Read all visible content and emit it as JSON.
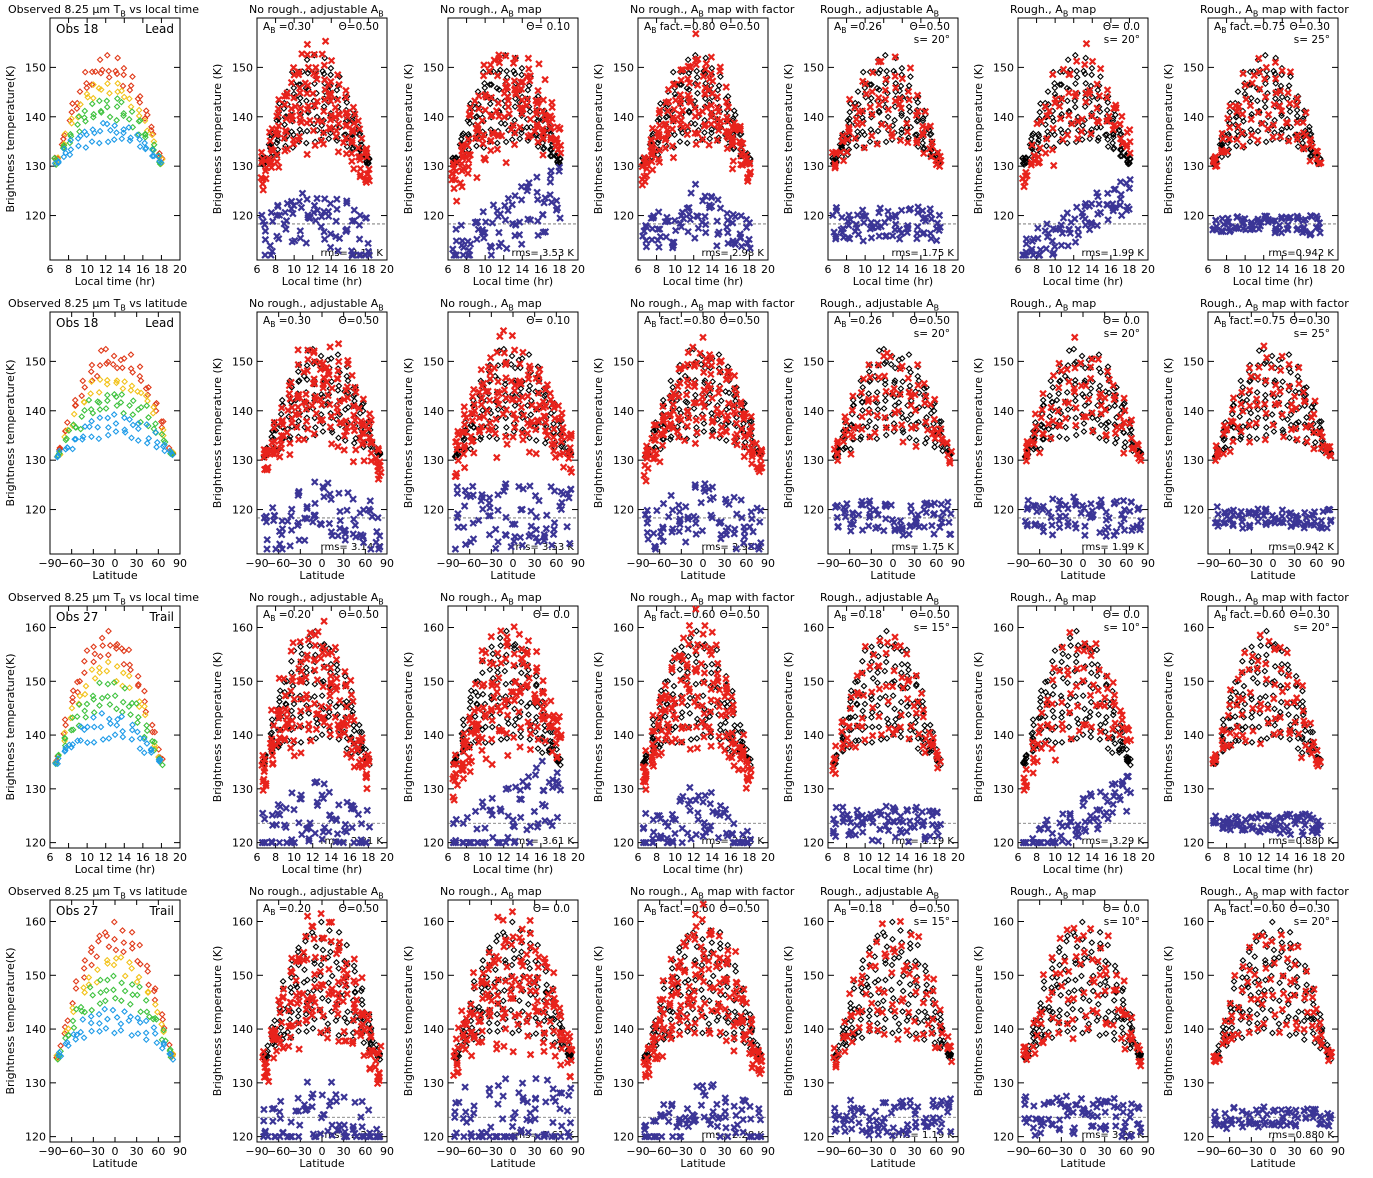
{
  "colors": {
    "observed_cool": "#1e9be8",
    "observed_mid": "#3fc23f",
    "observed_warm": "#f2c21b",
    "observed_hot": "#e03a1a",
    "model": "#e8231c",
    "observed_black": "#000000",
    "residual": "#3b3596",
    "reference_line": "#666666"
  },
  "marker_types": {
    "observed": "diamond-outline",
    "model": "cross-filled",
    "residual": "cross-filled"
  },
  "common": {
    "y_label_obs": "Brightness temperature(K)",
    "y_label_model": "Brightness temperature (K)",
    "x_label_time": "Local time (hr)",
    "x_label_lat": "Latitude",
    "x_ticks_time": [
      "6",
      "8",
      "10",
      "12",
      "14",
      "16",
      "18",
      "20"
    ],
    "x_ticks_lat": [
      "−90",
      "−60",
      "−30",
      "0",
      "30",
      "60",
      "90"
    ],
    "xlim_time": [
      6,
      20
    ],
    "xlim_lat": [
      -90,
      90
    ]
  },
  "chart_data": [
    {
      "row": 1,
      "type": "scatter",
      "xaxis": "time",
      "ylim": [
        111,
        160
      ],
      "yticks": [
        120,
        130,
        140,
        150
      ],
      "residual_ref": 118.3,
      "peak": 151,
      "obs": {
        "title": "Observed 8.25 μm T",
        "title_sub": "B",
        "title_tail": " vs local time",
        "label": "Obs 18",
        "track": "Lead"
      },
      "panels": [
        {
          "t1": "No rough., adjustable A",
          "t1_sub": "B",
          "t1_tail": "",
          "a1": "A",
          "a1_sub": "B",
          "a1_tail": " =0.30",
          "a2": "Θ=0.50",
          "a3": "",
          "rms": "rms= 3.14 K"
        },
        {
          "t1": "No rough., A",
          "t1_sub": "B",
          "t1_tail": " map",
          "a1": "",
          "a1_sub": "",
          "a1_tail": "",
          "a2": "Θ= 0.10",
          "a3": "",
          "rms": "rms= 3.53 K"
        },
        {
          "t1": "No rough., A",
          "t1_sub": "B",
          "t1_tail": " map with factor",
          "a1": "A",
          "a1_sub": "B",
          "a1_tail": " fact.=0.80",
          "a2": "Θ=0.50",
          "a3": "",
          "rms": "rms= 2.98 K"
        },
        {
          "t1": "Rough., adjustable A",
          "t1_sub": "B",
          "t1_tail": "",
          "a1": "A",
          "a1_sub": "B",
          "a1_tail": " =0.26",
          "a2": "Θ=0.50",
          "a3": "s= 20°",
          "rms": "rms= 1.75 K"
        },
        {
          "t1": "Rough., A",
          "t1_sub": "B",
          "t1_tail": " map",
          "a1": "",
          "a1_sub": "",
          "a1_tail": "",
          "a2": "Θ= 0.0",
          "a3": "s= 20°",
          "rms": "rms= 1.99 K"
        },
        {
          "t1": "Rough., A",
          "t1_sub": "B",
          "t1_tail": " map with factor",
          "a1": "A",
          "a1_sub": "B",
          "a1_tail": " fact.=0.75",
          "a2": "Θ=0.30",
          "a3": "s= 25°",
          "rms": "rms=0.942 K"
        }
      ]
    },
    {
      "row": 2,
      "type": "scatter",
      "xaxis": "lat",
      "ylim": [
        111,
        160
      ],
      "yticks": [
        120,
        130,
        140,
        150
      ],
      "residual_ref": 118.3,
      "peak": 151,
      "obs": {
        "title": "Observed 8.25 μm T",
        "title_sub": "B",
        "title_tail": " vs latitude",
        "label": "Obs 18",
        "track": "Lead"
      },
      "panels": [
        {
          "t1": "No rough., adjustable A",
          "t1_sub": "B",
          "t1_tail": "",
          "a1": "A",
          "a1_sub": "B",
          "a1_tail": " =0.30",
          "a2": "Θ=0.50",
          "a3": "",
          "rms": "rms= 3.14 K"
        },
        {
          "t1": "No rough., A",
          "t1_sub": "B",
          "t1_tail": " map",
          "a1": "",
          "a1_sub": "",
          "a1_tail": "",
          "a2": "Θ= 0.10",
          "a3": "",
          "rms": "rms= 3.53 K"
        },
        {
          "t1": "No rough., A",
          "t1_sub": "B",
          "t1_tail": " map with factor",
          "a1": "A",
          "a1_sub": "B",
          "a1_tail": " fact.=0.80",
          "a2": "Θ=0.50",
          "a3": "",
          "rms": "rms= 2.98 K"
        },
        {
          "t1": "Rough., adjustable A",
          "t1_sub": "B",
          "t1_tail": "",
          "a1": "A",
          "a1_sub": "B",
          "a1_tail": " =0.26",
          "a2": "Θ=0.50",
          "a3": "s= 20°",
          "rms": "rms= 1.75 K"
        },
        {
          "t1": "Rough., A",
          "t1_sub": "B",
          "t1_tail": " map",
          "a1": "",
          "a1_sub": "",
          "a1_tail": "",
          "a2": "Θ= 0.0",
          "a3": "s= 20°",
          "rms": "rms= 1.99 K"
        },
        {
          "t1": "Rough., A",
          "t1_sub": "B",
          "t1_tail": " map with factor",
          "a1": "A",
          "a1_sub": "B",
          "a1_tail": " fact.=0.75",
          "a2": "Θ=0.30",
          "a3": "s= 25°",
          "rms": "rms=0.942 K"
        }
      ]
    },
    {
      "row": 3,
      "type": "scatter",
      "xaxis": "time",
      "ylim": [
        119,
        164
      ],
      "yticks": [
        120,
        130,
        140,
        150,
        160
      ],
      "residual_ref": 123.6,
      "peak": 158,
      "obs": {
        "title": "Observed 8.25 μm T",
        "title_sub": "B",
        "title_tail": " vs local time",
        "label": "Obs 27",
        "track": "Trail"
      },
      "panels": [
        {
          "t1": "No rough., adjustable A",
          "t1_sub": "B",
          "t1_tail": "",
          "a1": "A",
          "a1_sub": "B",
          "a1_tail": " =0.20",
          "a2": "Θ=0.50",
          "a3": "",
          "rms": "rms= 2.21 K"
        },
        {
          "t1": "No rough., A",
          "t1_sub": "B",
          "t1_tail": " map",
          "a1": "",
          "a1_sub": "",
          "a1_tail": "",
          "a2": "Θ= 0.0",
          "a3": "",
          "rms": "rms= 3.61 K"
        },
        {
          "t1": "No rough., A",
          "t1_sub": "B",
          "t1_tail": " map with factor",
          "a1": "A",
          "a1_sub": "B",
          "a1_tail": " fact.=0.60",
          "a2": "Θ=0.50",
          "a3": "",
          "rms": "rms= 2.28 K"
        },
        {
          "t1": "Rough., adjustable A",
          "t1_sub": "B",
          "t1_tail": "",
          "a1": "A",
          "a1_sub": "B",
          "a1_tail": " =0.18",
          "a2": "Θ=0.50",
          "a3": "s= 15°",
          "rms": "rms= 1.19 K"
        },
        {
          "t1": "Rough., A",
          "t1_sub": "B",
          "t1_tail": " map",
          "a1": "",
          "a1_sub": "",
          "a1_tail": "",
          "a2": "Θ= 0.0",
          "a3": "s= 10°",
          "rms": "rms= 3.29 K"
        },
        {
          "t1": "Rough., A",
          "t1_sub": "B",
          "t1_tail": " map with factor",
          "a1": "A",
          "a1_sub": "B",
          "a1_tail": " fact.=0.60",
          "a2": "Θ=0.30",
          "a3": "s= 20°",
          "rms": "rms=0.880 K"
        }
      ]
    },
    {
      "row": 4,
      "type": "scatter",
      "xaxis": "lat",
      "ylim": [
        119,
        164
      ],
      "yticks": [
        120,
        130,
        140,
        150,
        160
      ],
      "residual_ref": 123.6,
      "peak": 158,
      "obs": {
        "title": "Observed 8.25 μm T",
        "title_sub": "B",
        "title_tail": " vs latitude",
        "label": "Obs 27",
        "track": "Trail"
      },
      "panels": [
        {
          "t1": "No rough., adjustable A",
          "t1_sub": "B",
          "t1_tail": "",
          "a1": "A",
          "a1_sub": "B",
          "a1_tail": " =0.20",
          "a2": "Θ=0.50",
          "a3": "",
          "rms": "rms= 2.21 K"
        },
        {
          "t1": "No rough., A",
          "t1_sub": "B",
          "t1_tail": " map",
          "a1": "",
          "a1_sub": "",
          "a1_tail": "",
          "a2": "Θ= 0.0",
          "a3": "",
          "rms": "rms= 3.61 K"
        },
        {
          "t1": "No rough., A",
          "t1_sub": "B",
          "t1_tail": " map with factor",
          "a1": "A",
          "a1_sub": "B",
          "a1_tail": " fact.=0.60",
          "a2": "Θ=0.50",
          "a3": "",
          "rms": "rms= 2.28 K"
        },
        {
          "t1": "Rough., adjustable A",
          "t1_sub": "B",
          "t1_tail": "",
          "a1": "A",
          "a1_sub": "B",
          "a1_tail": " =0.18",
          "a2": "Θ=0.50",
          "a3": "s= 15°",
          "rms": "rms= 1.19 K"
        },
        {
          "t1": "Rough., A",
          "t1_sub": "B",
          "t1_tail": " map",
          "a1": "",
          "a1_sub": "",
          "a1_tail": "",
          "a2": "Θ= 0.0",
          "a3": "s= 10°",
          "rms": "rms= 3.29 K"
        },
        {
          "t1": "Rough., A",
          "t1_sub": "B",
          "t1_tail": " map with factor",
          "a1": "A",
          "a1_sub": "B",
          "a1_tail": " fact.=0.60",
          "a2": "Θ=0.30",
          "a3": "s= 20°",
          "rms": "rms=0.880 K"
        }
      ]
    }
  ]
}
